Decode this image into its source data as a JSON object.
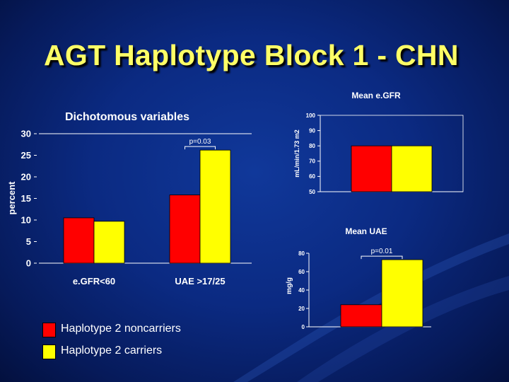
{
  "slide": {
    "title": "AGT Haplotype Block 1 - CHN"
  },
  "colors": {
    "noncarriers": "#ff0000",
    "carriers": "#ffff00",
    "text": "#ffffff",
    "title": "#ffff66"
  },
  "legend": [
    {
      "label": "Haplotype 2 noncarriers",
      "color": "#ff0000"
    },
    {
      "label": "Haplotype 2 carriers",
      "color": "#ffff00"
    }
  ],
  "chart_data": [
    {
      "type": "bar",
      "title": "Dichotomous variables",
      "xlabel": "",
      "ylabel": "percent",
      "categories": [
        "e.GFR<60",
        "UAE >17/25"
      ],
      "series": [
        {
          "name": "Haplotype 2 noncarriers",
          "values": [
            10.5,
            15.8
          ]
        },
        {
          "name": "Haplotype 2 carriers",
          "values": [
            9.7,
            26.2
          ]
        }
      ],
      "ylim": [
        0,
        30
      ],
      "yticks": [
        "0",
        "5",
        "10",
        "15",
        "20",
        "25",
        "30"
      ],
      "annotations": [
        {
          "text": "p=0.03",
          "category": "UAE >17/25"
        }
      ],
      "grid": false
    },
    {
      "type": "bar",
      "title": "Mean e.GFR",
      "xlabel": "",
      "ylabel": "mL/min/1.73 m2",
      "categories": [
        ""
      ],
      "series": [
        {
          "name": "Haplotype 2 noncarriers",
          "values": [
            80
          ]
        },
        {
          "name": "Haplotype 2 carriers",
          "values": [
            80
          ]
        }
      ],
      "ylim": [
        50,
        100
      ],
      "yticks": [
        "50",
        "60",
        "70",
        "80",
        "90",
        "100"
      ],
      "grid": false
    },
    {
      "type": "bar",
      "title": "Mean UAE",
      "xlabel": "",
      "ylabel": "mg/g",
      "categories": [
        ""
      ],
      "series": [
        {
          "name": "Haplotype 2 noncarriers",
          "values": [
            24
          ]
        },
        {
          "name": "Haplotype 2 carriers",
          "values": [
            73
          ]
        }
      ],
      "ylim": [
        0,
        80
      ],
      "yticks": [
        "0",
        "20",
        "40",
        "60",
        "80"
      ],
      "annotations": [
        {
          "text": "p=0.01",
          "category": ""
        }
      ],
      "grid": false
    }
  ]
}
